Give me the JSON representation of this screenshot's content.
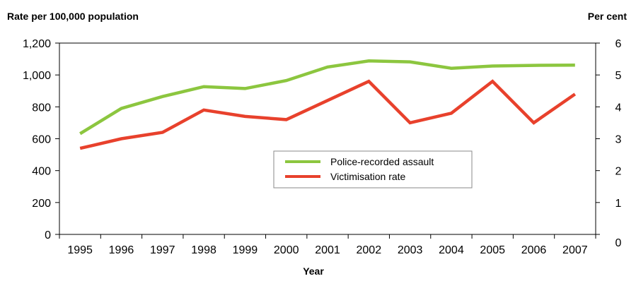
{
  "chart_data": {
    "type": "line",
    "title": "",
    "xlabel": "Year",
    "ylabel_left": "Rate per 100,000 population",
    "ylabel_right": "Per cent",
    "categories": [
      "1995",
      "1996",
      "1997",
      "1998",
      "1999",
      "2000",
      "2001",
      "2002",
      "2003",
      "2004",
      "2005",
      "2006",
      "2007"
    ],
    "ylim_left": [
      0,
      1200
    ],
    "yticks_left": [
      "0",
      "200",
      "400",
      "600",
      "800",
      "1,000",
      "1,200"
    ],
    "ylim_right": [
      0,
      6
    ],
    "yticks_right": [
      "0",
      "1",
      "2",
      "3",
      "4",
      "5",
      "6"
    ],
    "grid": false,
    "legend_placement": "center-right",
    "series": [
      {
        "name": "Police-recorded assault",
        "axis": "left",
        "color": "#8cc63f",
        "values": [
          632,
          790,
          865,
          927,
          915,
          965,
          1050,
          1088,
          1082,
          1042,
          1056,
          1060,
          1062
        ]
      },
      {
        "name": "Victimisation rate",
        "axis": "right",
        "color": "#e8412c",
        "values": [
          2.7,
          3.0,
          3.2,
          3.9,
          3.7,
          3.6,
          4.2,
          4.8,
          3.5,
          3.8,
          4.8,
          3.5,
          4.4
        ]
      }
    ]
  }
}
